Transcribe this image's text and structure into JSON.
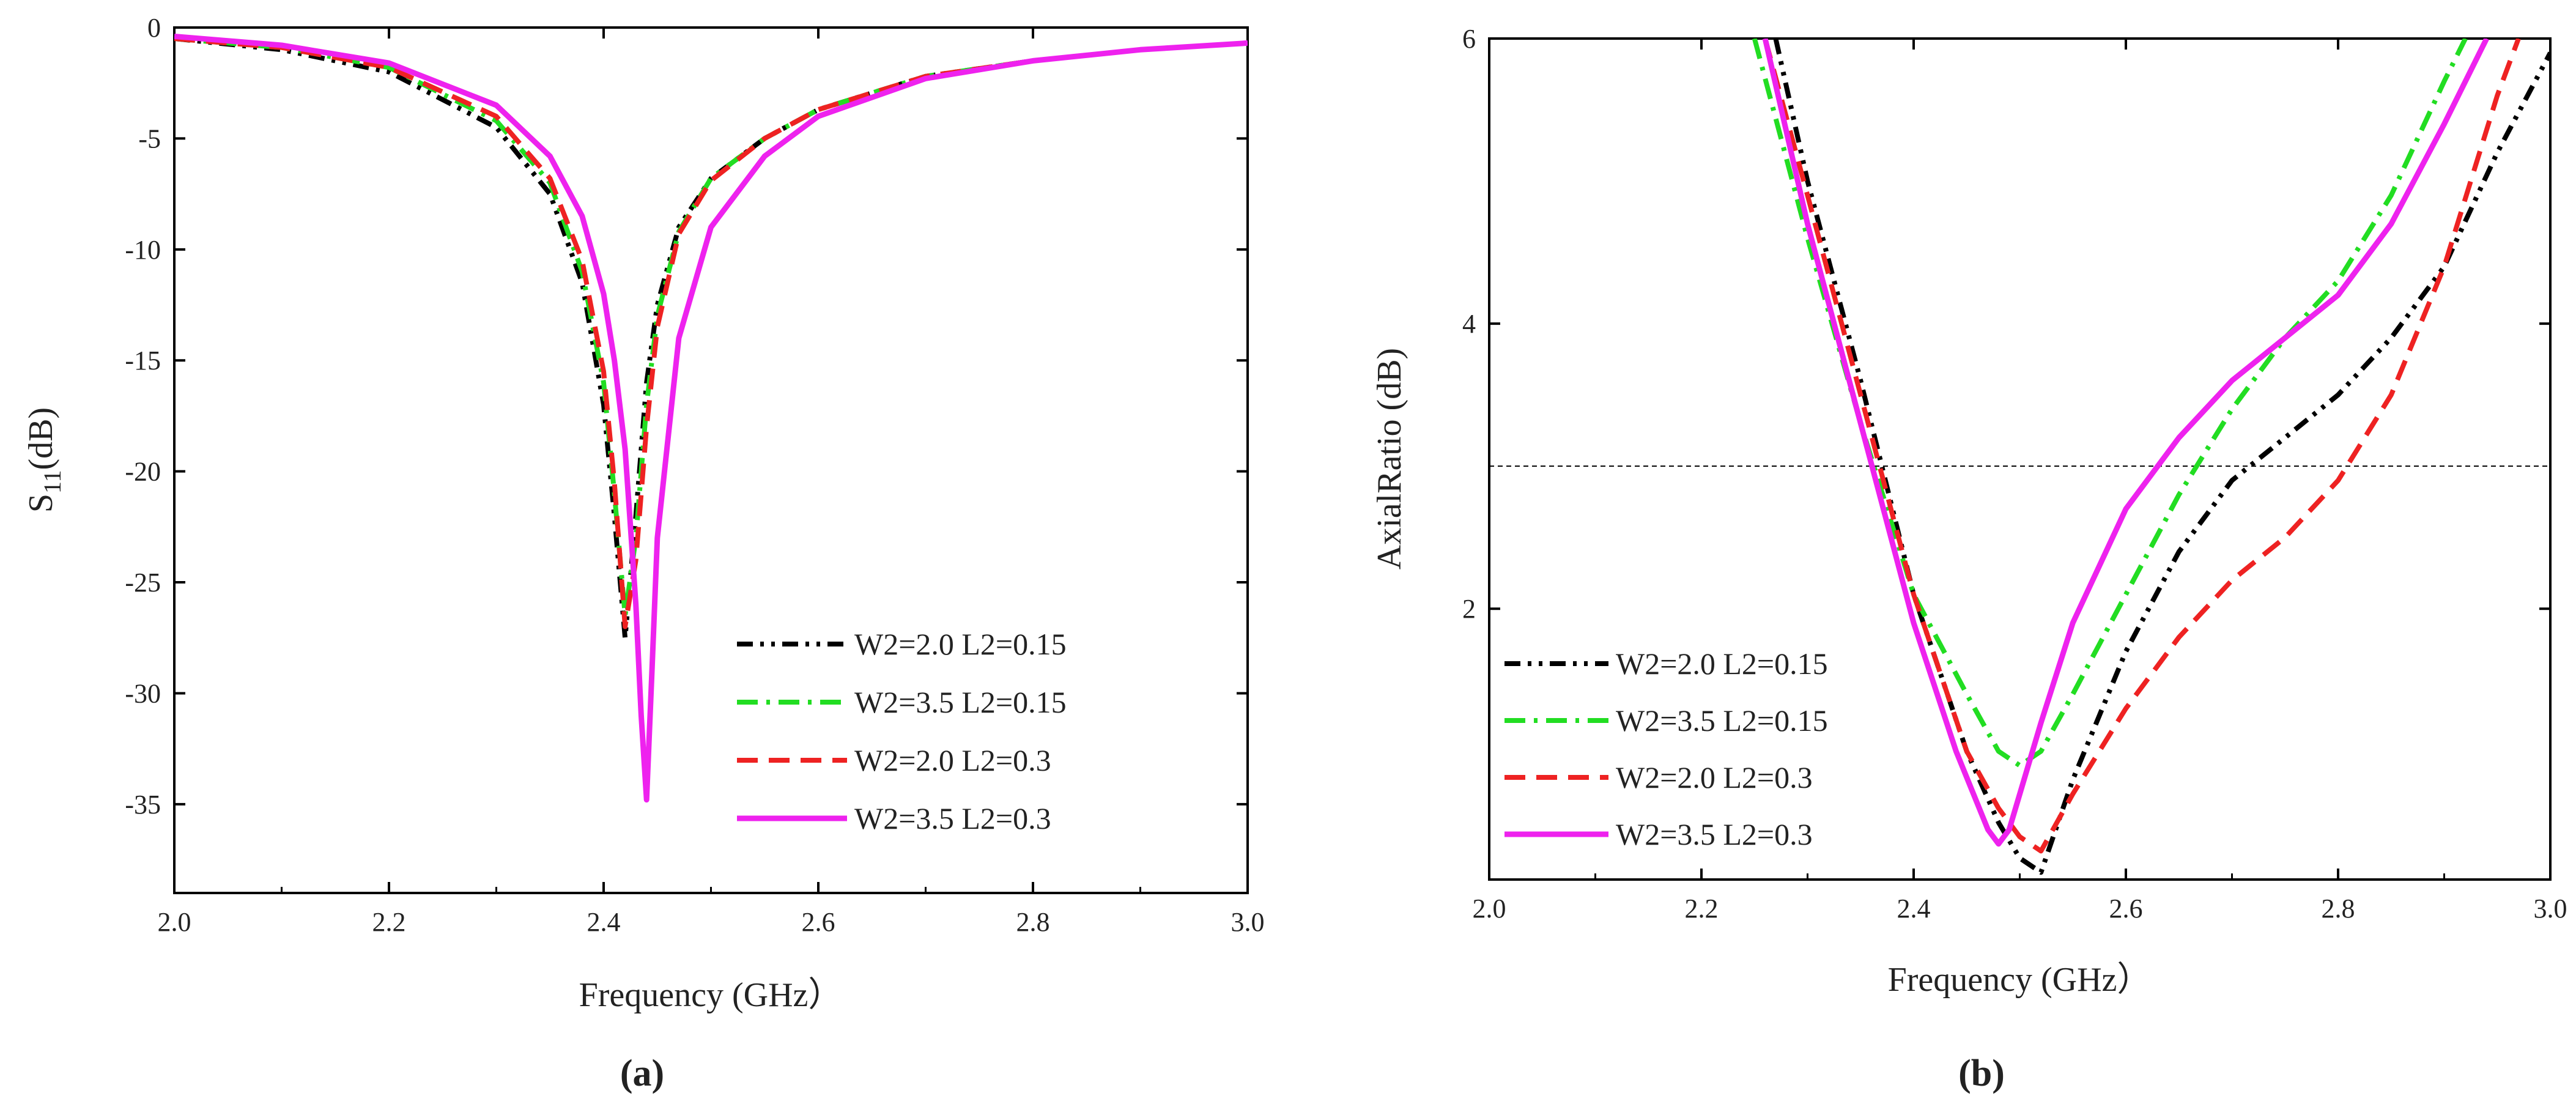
{
  "chart_data": [
    {
      "type": "line",
      "panel_label": "(a)",
      "xlabel": "Frequency (GHz）",
      "ylabel_main": "S",
      "ylabel_sub": "11",
      "ylabel_unit": "(dB)",
      "xlim": [
        2.0,
        3.0
      ],
      "ylim": [
        -39,
        0
      ],
      "xticks": [
        2.0,
        2.2,
        2.4,
        2.6,
        2.8,
        3.0
      ],
      "xtick_labels": [
        "2.0",
        "2.2",
        "2.4",
        "2.6",
        "2.8",
        "3.0"
      ],
      "yticks": [
        0,
        -5,
        -10,
        -15,
        -20,
        -25,
        -30,
        -35
      ],
      "ytick_labels": [
        "0",
        "-5",
        "-10",
        "-15",
        "-20",
        "-25",
        "-30",
        "-35"
      ],
      "grid": false,
      "legend_position": "bottom-right",
      "series": [
        {
          "name": "W2=2.0 L2=0.15",
          "color": "#000000",
          "style": "dash-dot-dot",
          "x": [
            2.0,
            2.1,
            2.2,
            2.3,
            2.35,
            2.38,
            2.4,
            2.41,
            2.42,
            2.43,
            2.44,
            2.45,
            2.47,
            2.5,
            2.55,
            2.6,
            2.7,
            2.8,
            2.9,
            3.0
          ],
          "y": [
            -0.5,
            -1.0,
            -2.0,
            -4.5,
            -7.5,
            -11.5,
            -17.0,
            -22.0,
            -27.5,
            -22.0,
            -16.0,
            -12.5,
            -9.0,
            -6.8,
            -5.0,
            -3.7,
            -2.2,
            -1.5,
            -1.0,
            -0.7
          ]
        },
        {
          "name": "W2=3.5 L2=0.15",
          "color": "#22dd22",
          "style": "dash-dot",
          "x": [
            2.0,
            2.1,
            2.2,
            2.3,
            2.35,
            2.38,
            2.4,
            2.41,
            2.42,
            2.43,
            2.44,
            2.45,
            2.47,
            2.5,
            2.55,
            2.6,
            2.7,
            2.8,
            2.9,
            3.0
          ],
          "y": [
            -0.5,
            -0.9,
            -1.8,
            -4.2,
            -7.0,
            -11.0,
            -16.0,
            -21.0,
            -26.5,
            -23.0,
            -17.0,
            -13.0,
            -9.2,
            -6.8,
            -5.0,
            -3.7,
            -2.2,
            -1.5,
            -1.0,
            -0.7
          ]
        },
        {
          "name": "W2=2.0 L2=0.3",
          "color": "#ee2222",
          "style": "dash",
          "x": [
            2.0,
            2.1,
            2.2,
            2.3,
            2.35,
            2.38,
            2.4,
            2.41,
            2.42,
            2.43,
            2.44,
            2.45,
            2.47,
            2.5,
            2.55,
            2.6,
            2.7,
            2.8,
            2.9,
            3.0
          ],
          "y": [
            -0.5,
            -0.9,
            -1.8,
            -4.0,
            -6.8,
            -10.5,
            -15.5,
            -20.5,
            -27.0,
            -24.0,
            -18.0,
            -13.5,
            -9.3,
            -6.9,
            -5.0,
            -3.7,
            -2.2,
            -1.5,
            -1.0,
            -0.7
          ]
        },
        {
          "name": "W2=3.5 L2=0.3",
          "color": "#ee22ee",
          "style": "solid",
          "x": [
            2.0,
            2.1,
            2.2,
            2.3,
            2.35,
            2.38,
            2.4,
            2.41,
            2.42,
            2.43,
            2.435,
            2.44,
            2.445,
            2.45,
            2.47,
            2.5,
            2.55,
            2.6,
            2.7,
            2.8,
            2.9,
            3.0
          ],
          "y": [
            -0.4,
            -0.8,
            -1.6,
            -3.5,
            -5.8,
            -8.5,
            -12.0,
            -15.0,
            -19.0,
            -26.0,
            -31.0,
            -34.8,
            -29.0,
            -23.0,
            -14.0,
            -9.0,
            -5.8,
            -4.0,
            -2.3,
            -1.5,
            -1.0,
            -0.7
          ]
        }
      ]
    },
    {
      "type": "line",
      "panel_label": "(b)",
      "xlabel": "Frequency (GHz）",
      "ylabel": "AxialRatio (dB)",
      "xlim": [
        2.0,
        3.0
      ],
      "ylim": [
        0.1,
        6.0
      ],
      "xticks": [
        2.0,
        2.2,
        2.4,
        2.6,
        2.8,
        3.0
      ],
      "xtick_labels": [
        "2.0",
        "2.2",
        "2.4",
        "2.6",
        "2.8",
        "3.0"
      ],
      "yticks": [
        2,
        4,
        6
      ],
      "ytick_labels": [
        "2",
        "4",
        "6"
      ],
      "reference_line_y": 3,
      "grid": false,
      "legend_position": "bottom-left",
      "series": [
        {
          "name": "W2=2.0 L2=0.15",
          "color": "#000000",
          "style": "dash-dot-dot",
          "x": [
            2.27,
            2.3,
            2.35,
            2.4,
            2.45,
            2.48,
            2.5,
            2.52,
            2.55,
            2.6,
            2.65,
            2.7,
            2.75,
            2.8,
            2.85,
            2.9,
            2.95,
            3.0
          ],
          "y": [
            6.0,
            5.0,
            3.6,
            2.1,
            1.0,
            0.5,
            0.25,
            0.15,
            0.8,
            1.7,
            2.4,
            2.9,
            3.2,
            3.5,
            3.9,
            4.4,
            5.2,
            5.9
          ]
        },
        {
          "name": "W2=3.5 L2=0.15",
          "color": "#22dd22",
          "style": "dash-dot",
          "x": [
            2.25,
            2.3,
            2.35,
            2.4,
            2.45,
            2.48,
            2.5,
            2.52,
            2.55,
            2.6,
            2.65,
            2.7,
            2.75,
            2.8,
            2.85,
            2.9,
            2.92
          ],
          "y": [
            6.0,
            4.6,
            3.3,
            2.1,
            1.4,
            1.0,
            0.9,
            1.0,
            1.4,
            2.1,
            2.8,
            3.4,
            3.9,
            4.3,
            4.9,
            5.7,
            6.0
          ]
        },
        {
          "name": "W2=2.0 L2=0.3",
          "color": "#ee2222",
          "style": "dash",
          "x": [
            2.26,
            2.3,
            2.35,
            2.4,
            2.45,
            2.48,
            2.5,
            2.52,
            2.55,
            2.6,
            2.65,
            2.7,
            2.75,
            2.8,
            2.85,
            2.9,
            2.95,
            2.97
          ],
          "y": [
            6.0,
            4.9,
            3.5,
            2.1,
            1.0,
            0.6,
            0.4,
            0.3,
            0.7,
            1.3,
            1.8,
            2.2,
            2.5,
            2.9,
            3.5,
            4.4,
            5.6,
            6.0
          ]
        },
        {
          "name": "W2=3.5 L2=0.3",
          "color": "#ee22ee",
          "style": "solid",
          "x": [
            2.26,
            2.3,
            2.35,
            2.4,
            2.44,
            2.47,
            2.48,
            2.49,
            2.52,
            2.55,
            2.6,
            2.65,
            2.7,
            2.75,
            2.8,
            2.85,
            2.9,
            2.94
          ],
          "y": [
            6.0,
            4.7,
            3.3,
            1.9,
            1.0,
            0.45,
            0.35,
            0.45,
            1.2,
            1.9,
            2.7,
            3.2,
            3.6,
            3.9,
            4.2,
            4.7,
            5.4,
            6.0
          ]
        }
      ]
    }
  ]
}
